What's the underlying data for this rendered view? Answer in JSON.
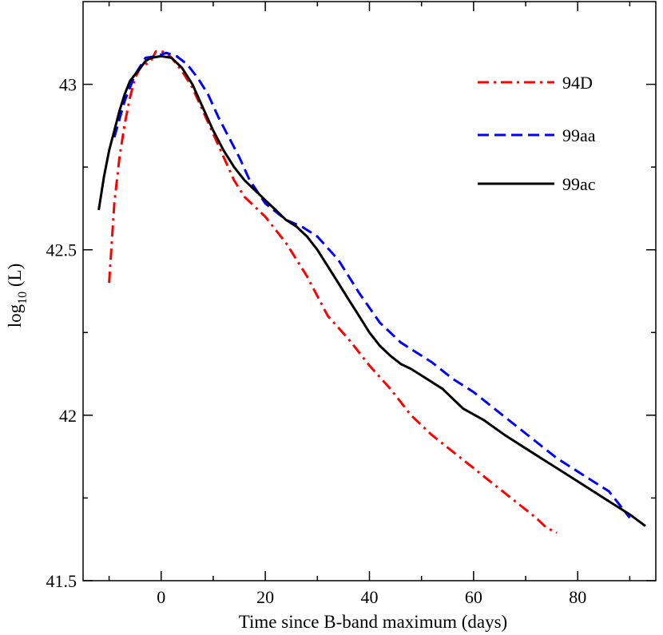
{
  "chart_data": {
    "type": "line",
    "title": "",
    "xlabel": "Time since B-band maximum (days)",
    "ylabel": {
      "base": "log",
      "subscript": "10",
      "rest": " (L)"
    },
    "xlim": [
      -15,
      95
    ],
    "ylim": [
      41.5,
      43.25
    ],
    "xticks": [
      0,
      20,
      40,
      60,
      80
    ],
    "xtick_labels": [
      "0",
      "20",
      "40",
      "60",
      "80"
    ],
    "yticks": [
      41.5,
      42,
      42.5,
      43
    ],
    "ytick_labels": [
      "41.5",
      "42",
      "42.5",
      "43"
    ],
    "legend_position": "top-right",
    "series": [
      {
        "name": "94D",
        "color": "#ff0000",
        "dash": "dashdot",
        "points": [
          [
            -10,
            42.4
          ],
          [
            -9,
            42.64
          ],
          [
            -8,
            42.78
          ],
          [
            -7,
            42.88
          ],
          [
            -6,
            42.96
          ],
          [
            -5,
            43.02
          ],
          [
            -4,
            43.05
          ],
          [
            -3,
            43.06
          ],
          [
            -2,
            43.07
          ],
          [
            -1,
            43.1
          ],
          [
            0,
            43.1
          ],
          [
            1,
            43.095
          ],
          [
            2,
            43.08
          ],
          [
            4,
            43.04
          ],
          [
            6,
            42.99
          ],
          [
            8,
            42.92
          ],
          [
            10,
            42.85
          ],
          [
            12,
            42.78
          ],
          [
            14,
            42.71
          ],
          [
            16,
            42.66
          ],
          [
            20,
            42.6
          ],
          [
            24,
            42.52
          ],
          [
            28,
            42.42
          ],
          [
            32,
            42.3
          ],
          [
            36,
            42.23
          ],
          [
            40,
            42.15
          ],
          [
            44,
            42.08
          ],
          [
            48,
            42.0
          ],
          [
            52,
            41.94
          ],
          [
            56,
            41.89
          ],
          [
            60,
            41.84
          ],
          [
            64,
            41.79
          ],
          [
            68,
            41.74
          ],
          [
            72,
            41.69
          ],
          [
            74,
            41.66
          ],
          [
            76,
            41.645
          ]
        ]
      },
      {
        "name": "99aa",
        "color": "#0000ff",
        "dash": "dashed",
        "points": [
          [
            -9,
            42.84
          ],
          [
            -7,
            42.95
          ],
          [
            -5,
            43.03
          ],
          [
            -3,
            43.08
          ],
          [
            -1,
            43.085
          ],
          [
            1,
            43.095
          ],
          [
            3,
            43.085
          ],
          [
            5,
            43.06
          ],
          [
            7,
            43.02
          ],
          [
            9,
            42.97
          ],
          [
            11,
            42.9
          ],
          [
            13,
            42.84
          ],
          [
            15,
            42.78
          ],
          [
            17,
            42.71
          ],
          [
            20,
            42.64
          ],
          [
            24,
            42.59
          ],
          [
            27,
            42.57
          ],
          [
            30,
            42.54
          ],
          [
            34,
            42.47
          ],
          [
            38,
            42.37
          ],
          [
            42,
            42.28
          ],
          [
            46,
            42.22
          ],
          [
            52,
            42.16
          ],
          [
            56,
            42.11
          ],
          [
            60,
            42.07
          ],
          [
            64,
            42.02
          ],
          [
            68,
            41.97
          ],
          [
            72,
            41.92
          ],
          [
            76,
            41.87
          ],
          [
            80,
            41.83
          ],
          [
            86,
            41.77
          ],
          [
            88,
            41.73
          ],
          [
            90,
            41.69
          ]
        ]
      },
      {
        "name": "99ac",
        "color": "#000000",
        "dash": "solid",
        "points": [
          [
            -12,
            42.62
          ],
          [
            -11,
            42.72
          ],
          [
            -10,
            42.8
          ],
          [
            -9,
            42.86
          ],
          [
            -8,
            42.92
          ],
          [
            -7,
            42.97
          ],
          [
            -6,
            43.01
          ],
          [
            -4,
            43.05
          ],
          [
            -3,
            43.07
          ],
          [
            -2,
            43.08
          ],
          [
            0,
            43.085
          ],
          [
            2,
            43.08
          ],
          [
            4,
            43.05
          ],
          [
            6,
            43.0
          ],
          [
            8,
            42.93
          ],
          [
            10,
            42.86
          ],
          [
            12,
            42.8
          ],
          [
            14,
            42.75
          ],
          [
            16,
            42.71
          ],
          [
            18,
            42.68
          ],
          [
            20,
            42.65
          ],
          [
            22,
            42.62
          ],
          [
            24,
            42.59
          ],
          [
            26,
            42.57
          ],
          [
            28,
            42.54
          ],
          [
            30,
            42.5
          ],
          [
            32,
            42.45
          ],
          [
            34,
            42.4
          ],
          [
            36,
            42.35
          ],
          [
            38,
            42.3
          ],
          [
            40,
            42.25
          ],
          [
            42,
            42.21
          ],
          [
            44,
            42.18
          ],
          [
            46,
            42.155
          ],
          [
            48,
            42.14
          ],
          [
            50,
            42.12
          ],
          [
            54,
            42.08
          ],
          [
            58,
            42.02
          ],
          [
            62,
            41.985
          ],
          [
            66,
            41.94
          ],
          [
            70,
            41.9
          ],
          [
            74,
            41.86
          ],
          [
            78,
            41.82
          ],
          [
            82,
            41.78
          ],
          [
            86,
            41.74
          ],
          [
            90,
            41.7
          ],
          [
            93,
            41.665
          ]
        ]
      }
    ]
  }
}
